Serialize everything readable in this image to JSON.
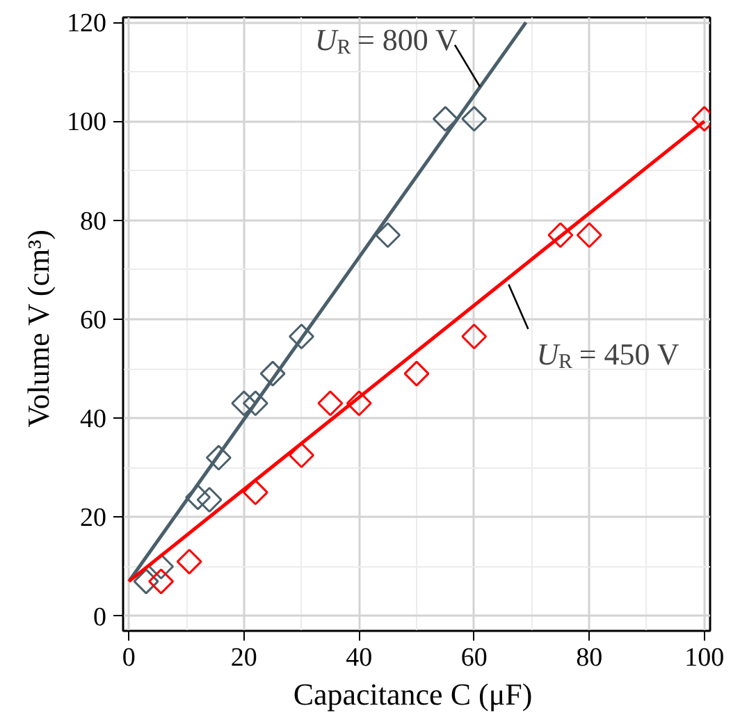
{
  "chart_data": {
    "type": "scatter",
    "xlabel": "Capacitance  C (μF)",
    "ylabel": "Volume  V (cm³)",
    "xlim": [
      -1,
      101
    ],
    "ylim": [
      -3,
      121
    ],
    "xticks": [
      0,
      20,
      40,
      60,
      80,
      100
    ],
    "yticks": [
      0,
      20,
      40,
      60,
      80,
      100,
      120
    ],
    "grid": true,
    "marker": "diamond",
    "series": [
      {
        "color": "#4a5f6b",
        "x": [
          3,
          5.6,
          12,
          14,
          15.6,
          20,
          22,
          25,
          30,
          45,
          55,
          60
        ],
        "values": [
          7,
          10,
          24,
          23.5,
          32,
          43,
          43,
          49,
          56.5,
          77,
          100.5,
          100.5
        ]
      },
      {
        "color": "#ff0000",
        "x": [
          5.6,
          10.5,
          22,
          30,
          35,
          40,
          50,
          60,
          75,
          80,
          100
        ],
        "values": [
          7,
          11,
          25,
          32.5,
          43,
          43,
          49,
          56.5,
          77,
          77,
          100.5
        ]
      },
      {
        "type": "line",
        "marker": "none",
        "color": "#4a5f6b",
        "x": [
          0,
          69
        ],
        "values": [
          7,
          120
        ]
      },
      {
        "type": "line",
        "marker": "none",
        "color": "#ff0000",
        "x": [
          0,
          100
        ],
        "values": [
          7,
          100
        ]
      }
    ],
    "annotations": [
      {
        "text": "U$_{R}$ = 800 V",
        "x": 61,
        "y": 107
      },
      {
        "text": "U$_{R}$ = 450 V",
        "x": 66,
        "y": 67
      }
    ]
  }
}
